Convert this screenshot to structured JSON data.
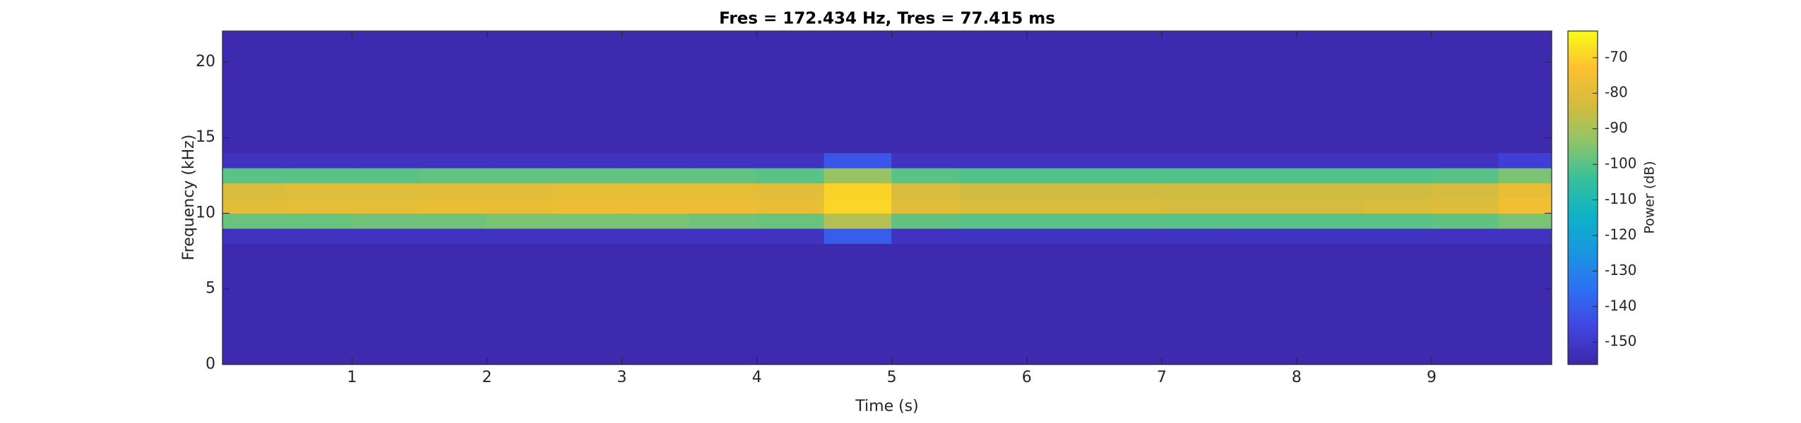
{
  "chart_data": {
    "type": "heatmap",
    "title": "Fres = 172.434 Hz, Tres = 77.415 ms",
    "x_label": "Time (s)",
    "y_label": "Frequency (kHz)",
    "colorbar_label": "Power (dB)",
    "xlim": [
      0.04,
      9.89
    ],
    "ylim": [
      0,
      22.05
    ],
    "xticks": [
      1,
      2,
      3,
      4,
      5,
      6,
      7,
      8,
      9
    ],
    "yticks": [
      0,
      5,
      10,
      15,
      20
    ],
    "clim": [
      -156.3,
      -62.5
    ],
    "cticks": [
      -150,
      -140,
      -130,
      -120,
      -110,
      -100,
      -90,
      -80,
      -70
    ],
    "colormap": [
      "#3e26a8",
      "#4145e0",
      "#2e6ff5",
      "#1a95e0",
      "#0eb2c8",
      "#36c09a",
      "#8cc56a",
      "#d4bc3e",
      "#fdc030",
      "#f9fb15"
    ],
    "x": [
      0.25,
      0.75,
      1.25,
      1.75,
      2.25,
      2.75,
      3.25,
      3.75,
      4.25,
      4.75,
      5.25,
      5.75,
      6.25,
      6.75,
      7.25,
      7.75,
      8.25,
      8.75,
      9.25,
      9.75
    ],
    "y": [
      0.5,
      1.5,
      2.5,
      3.5,
      4.5,
      5.5,
      6.5,
      7.5,
      8.5,
      9.5,
      10.5,
      11.5,
      12.5,
      13.5,
      14.5,
      15.5,
      16.5,
      17.5,
      18.5,
      19.5,
      20.5,
      21.5
    ],
    "z": [
      [
        -155,
        -155,
        -155,
        -155,
        -155,
        -155,
        -155,
        -155,
        -155,
        -155,
        -155,
        -155,
        -155,
        -155,
        -155,
        -155,
        -155,
        -155,
        -155,
        -155
      ],
      [
        -155,
        -155,
        -155,
        -155,
        -155,
        -155,
        -155,
        -155,
        -155,
        -155,
        -155,
        -155,
        -155,
        -155,
        -155,
        -155,
        -155,
        -155,
        -155,
        -155
      ],
      [
        -155,
        -155,
        -155,
        -155,
        -155,
        -155,
        -155,
        -155,
        -155,
        -155,
        -155,
        -155,
        -155,
        -155,
        -155,
        -155,
        -155,
        -155,
        -155,
        -155
      ],
      [
        -155,
        -155,
        -155,
        -155,
        -155,
        -155,
        -155,
        -155,
        -155,
        -155,
        -155,
        -155,
        -155,
        -155,
        -155,
        -155,
        -155,
        -155,
        -155,
        -155
      ],
      [
        -155,
        -155,
        -155,
        -155,
        -155,
        -155,
        -155,
        -155,
        -155,
        -155,
        -155,
        -155,
        -155,
        -155,
        -155,
        -155,
        -155,
        -155,
        -155,
        -155
      ],
      [
        -155,
        -155,
        -155,
        -155,
        -155,
        -155,
        -155,
        -155,
        -155,
        -155,
        -155,
        -155,
        -155,
        -155,
        -155,
        -155,
        -155,
        -155,
        -155,
        -155
      ],
      [
        -155,
        -155,
        -155,
        -155,
        -155,
        -155,
        -155,
        -155,
        -155,
        -155,
        -155,
        -155,
        -155,
        -155,
        -155,
        -155,
        -155,
        -155,
        -155,
        -155
      ],
      [
        -155,
        -155,
        -155,
        -155,
        -155,
        -155,
        -155,
        -155,
        -155,
        -155,
        -155,
        -155,
        -155,
        -155,
        -155,
        -155,
        -155,
        -155,
        -155,
        -155
      ],
      [
        -152,
        -152,
        -152,
        -152,
        -152,
        -152,
        -152,
        -152,
        -152,
        -140,
        -152,
        -152,
        -152,
        -152,
        -152,
        -152,
        -152,
        -152,
        -152,
        -152
      ],
      [
        -98,
        -98,
        -97,
        -97,
        -96,
        -96,
        -96,
        -97,
        -98,
        -88,
        -99,
        -100,
        -100,
        -100,
        -100,
        -100,
        -100,
        -100,
        -99,
        -96
      ],
      [
        -80,
        -79,
        -79,
        -78,
        -78,
        -77,
        -77,
        -77,
        -78,
        -69,
        -80,
        -82,
        -82,
        -82,
        -83,
        -83,
        -83,
        -82,
        -81,
        -76
      ],
      [
        -82,
        -81,
        -81,
        -80,
        -80,
        -79,
        -79,
        -79,
        -80,
        -70,
        -82,
        -84,
        -84,
        -84,
        -84,
        -84,
        -84,
        -84,
        -83,
        -78
      ],
      [
        -100,
        -100,
        -100,
        -99,
        -99,
        -99,
        -99,
        -99,
        -100,
        -92,
        -100,
        -101,
        -101,
        -101,
        -101,
        -101,
        -101,
        -101,
        -100,
        -96
      ],
      [
        -152,
        -152,
        -152,
        -152,
        -152,
        -152,
        -152,
        -152,
        -152,
        -142,
        -152,
        -152,
        -152,
        -152,
        -152,
        -152,
        -152,
        -152,
        -152,
        -148
      ],
      [
        -155,
        -155,
        -155,
        -155,
        -155,
        -155,
        -155,
        -155,
        -155,
        -155,
        -155,
        -155,
        -155,
        -155,
        -155,
        -155,
        -155,
        -155,
        -155,
        -155
      ],
      [
        -155,
        -155,
        -155,
        -155,
        -155,
        -155,
        -155,
        -155,
        -155,
        -155,
        -155,
        -155,
        -155,
        -155,
        -155,
        -155,
        -155,
        -155,
        -155,
        -155
      ],
      [
        -155,
        -155,
        -155,
        -155,
        -155,
        -155,
        -155,
        -155,
        -155,
        -155,
        -155,
        -155,
        -155,
        -155,
        -155,
        -155,
        -155,
        -155,
        -155,
        -155
      ],
      [
        -155,
        -155,
        -155,
        -155,
        -155,
        -155,
        -155,
        -155,
        -155,
        -155,
        -155,
        -155,
        -155,
        -155,
        -155,
        -155,
        -155,
        -155,
        -155,
        -155
      ],
      [
        -155,
        -155,
        -155,
        -155,
        -155,
        -155,
        -155,
        -155,
        -155,
        -155,
        -155,
        -155,
        -155,
        -155,
        -155,
        -155,
        -155,
        -155,
        -155,
        -155
      ],
      [
        -155,
        -155,
        -155,
        -155,
        -155,
        -155,
        -155,
        -155,
        -155,
        -155,
        -155,
        -155,
        -155,
        -155,
        -155,
        -155,
        -155,
        -155,
        -155,
        -155
      ],
      [
        -155,
        -155,
        -155,
        -155,
        -155,
        -155,
        -155,
        -155,
        -155,
        -155,
        -155,
        -155,
        -155,
        -155,
        -155,
        -155,
        -155,
        -155,
        -155,
        -155
      ],
      [
        -155,
        -155,
        -155,
        -155,
        -155,
        -155,
        -155,
        -155,
        -155,
        -155,
        -155,
        -155,
        -155,
        -155,
        -155,
        -155,
        -155,
        -155,
        -155,
        -155
      ]
    ]
  }
}
